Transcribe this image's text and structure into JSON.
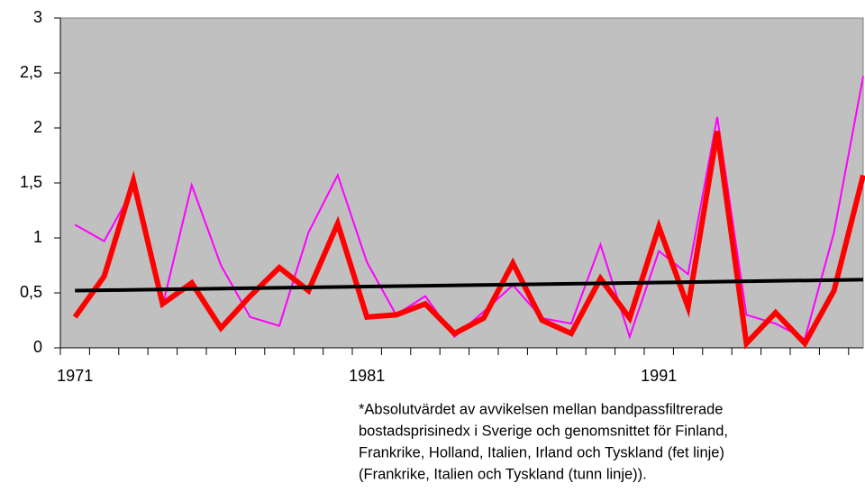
{
  "chart_data": {
    "type": "line",
    "categories": [
      "1971",
      null,
      null,
      null,
      null,
      null,
      null,
      null,
      null,
      null,
      "1981",
      null,
      null,
      null,
      null,
      null,
      null,
      null,
      null,
      null,
      "1991",
      null,
      null,
      null,
      null,
      null,
      null,
      null
    ],
    "series": [
      {
        "color": "#ff0000",
        "width": 6,
        "values": [
          0.28,
          0.65,
          1.52,
          0.4,
          0.59,
          0.18,
          0.47,
          0.73,
          0.52,
          1.13,
          0.28,
          0.3,
          0.4,
          0.13,
          0.27,
          0.77,
          0.25,
          0.13,
          0.63,
          0.27,
          1.1,
          0.37,
          1.97,
          0.04,
          0.32,
          0.04,
          0.52,
          1.57
        ]
      },
      {
        "color": "#ff00ff",
        "width": 2,
        "values": [
          1.12,
          0.97,
          1.45,
          0.38,
          1.48,
          0.75,
          0.28,
          0.2,
          1.05,
          1.57,
          0.78,
          0.3,
          0.47,
          0.1,
          0.33,
          0.57,
          0.27,
          0.22,
          0.94,
          0.1,
          0.88,
          0.67,
          2.1,
          0.3,
          0.22,
          0.08,
          1.05,
          2.47
        ]
      }
    ],
    "trendline": {
      "color": "#000000",
      "width": 4,
      "values": [
        0.52,
        0.62
      ]
    },
    "ylim": [
      0,
      3
    ],
    "yticks": [
      0,
      {
        "value": 0.5,
        "label": "0,5"
      },
      1,
      {
        "value": 1.5,
        "label": "1,5"
      },
      2,
      {
        "value": 2.5,
        "label": "2,5"
      },
      3
    ],
    "plot_background": "#c0c0c0",
    "grid": false,
    "note": [
      "*Absolutvärdet av avvikelsen mellan bandpassfiltrerade",
      "bostadsprisinedx i Sverige och genomsnittet för Finland,",
      "Frankrike, Holland, Italien, Irland och Tyskland (fet linje)",
      "(Frankrike, Italien och Tyskland (tunn linje))."
    ]
  }
}
